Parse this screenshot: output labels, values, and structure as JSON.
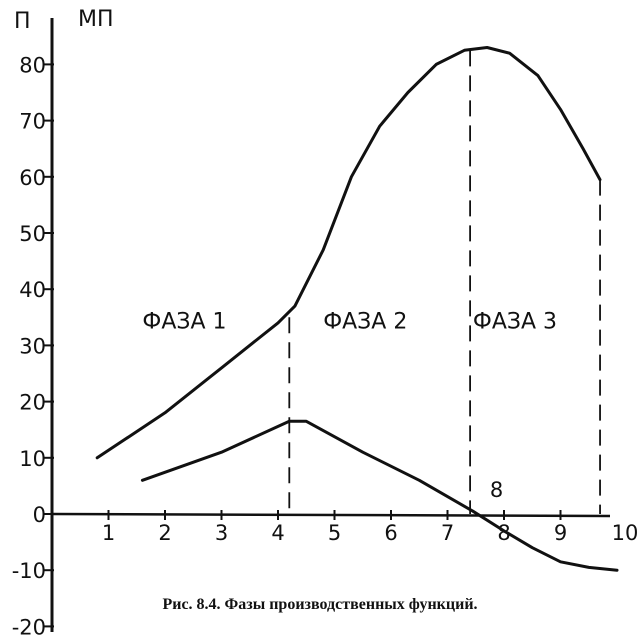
{
  "chart_data": {
    "type": "line",
    "title": "",
    "y_axis_labels": [
      "П",
      "МП"
    ],
    "x_ticks": [
      "1",
      "2",
      "3",
      "4",
      "5",
      "6",
      "7",
      "8",
      "9",
      "10"
    ],
    "y_ticks": [
      "-20",
      "-10",
      "0",
      "10",
      "20",
      "30",
      "40",
      "50",
      "60",
      "70",
      "80"
    ],
    "xlim": [
      0,
      10
    ],
    "ylim": [
      -20,
      85
    ],
    "grid": false,
    "legend": "none",
    "series": [
      {
        "x": [
          0.8,
          2.0,
          3.0,
          4.0,
          4.3,
          4.8,
          5.3,
          5.8,
          6.3,
          6.8,
          7.3,
          7.7,
          8.1,
          8.6,
          9.0,
          9.4,
          9.7
        ],
        "y": [
          10,
          18,
          26,
          34,
          37,
          47,
          60,
          69,
          75,
          80,
          82.5,
          83,
          82,
          78,
          72,
          65,
          59.5
        ]
      },
      {
        "x": [
          1.6,
          3.0,
          4.2,
          4.5,
          5.5,
          6.5,
          7.45,
          8.0,
          8.5,
          9.0,
          9.5,
          10.0
        ],
        "y": [
          6,
          11,
          16.5,
          16.5,
          11,
          6,
          0.5,
          -3,
          -6,
          -8.5,
          -9.5,
          -10
        ]
      }
    ],
    "verticals": [
      {
        "x": 4.2,
        "from": 1,
        "to": 35
      },
      {
        "x": 7.4,
        "from": 0,
        "to": 82.5
      },
      {
        "x": 9.7,
        "from": 0,
        "to": 59.5
      }
    ],
    "phases": [
      {
        "label": "ФАЗА 1",
        "x": 1.6,
        "y": 33
      },
      {
        "label": "ФАЗА 2",
        "x": 4.8,
        "y": 33
      },
      {
        "label": "ФАЗА 3",
        "x": 7.45,
        "y": 33
      }
    ],
    "annotations": [
      {
        "text": "8",
        "x": 7.75,
        "y": 3
      }
    ]
  },
  "caption": "Рис. 8.4. Фазы производственных функций."
}
